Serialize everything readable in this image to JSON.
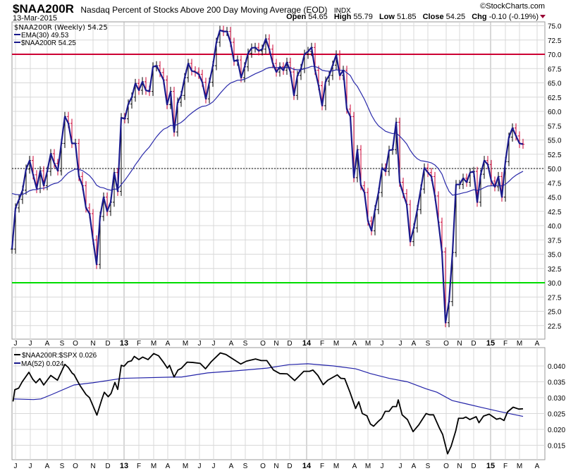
{
  "header": {
    "symbol": "$NAA200R",
    "description": "Nasdaq Percent of Stocks Above 200 Day Moving Average (EOD)",
    "exchange": "INDX",
    "date": "13-Mar-2015",
    "copyright": "©StockCharts.com",
    "quote": {
      "open_label": "Open",
      "open": "54.65",
      "high_label": "High",
      "high": "55.79",
      "low_label": "Low",
      "low": "51.85",
      "close_label": "Close",
      "close": "54.25",
      "chg_label": "Chg",
      "chg": "-0.10 (-0.19%)"
    }
  },
  "colors": {
    "price_line": "#1a1a8c",
    "ema": "#2a2aaa",
    "down_bar": "#cc0033",
    "up_bar": "#000000",
    "overbought": "#cc0033",
    "oversold": "#00dd00",
    "ratio": "#000000",
    "ratio_ma": "#2323a8",
    "grid": "#d8d8d8"
  },
  "chart_data": [
    {
      "type": "line",
      "title": "$NAA200R (Weekly) 54.25",
      "legend": [
        "$NAA200R (Weekly) 54.25",
        "EMA(30) 49.53",
        "$NAA200R 54.25"
      ],
      "legend_placement": "top-left",
      "x_unit": "weeks since first bar (first bar ≈ early Jun 2012, last bar 13-Mar-2015)",
      "ylim": [
        21,
        76.5
      ],
      "yticks": [
        "75.0",
        "72.5",
        "70.0",
        "67.5",
        "65.0",
        "62.5",
        "60.0",
        "57.5",
        "55.0",
        "52.5",
        "50.0",
        "47.5",
        "45.0",
        "42.5",
        "40.0",
        "37.5",
        "35.0",
        "32.5",
        "30.0",
        "27.5",
        "25.0",
        "22.5"
      ],
      "ytick_values": [
        75,
        72.5,
        70,
        67.5,
        65,
        62.5,
        60,
        57.5,
        55,
        52.5,
        50,
        47.5,
        45,
        42.5,
        40,
        37.5,
        35,
        32.5,
        30,
        27.5,
        25,
        22.5
      ],
      "hlines": {
        "overbought": 70,
        "midline": 50,
        "oversold": 30
      },
      "ema_period": 30,
      "ema_last": 49.53,
      "close": [
        35.9,
        43.1,
        44.6,
        46.2,
        49.9,
        51.4,
        48.9,
        46.5,
        49.6,
        47.0,
        49.5,
        52.6,
        50.9,
        49.6,
        54.4,
        59.1,
        57.9,
        54.4,
        54.4,
        48.6,
        47.0,
        43.1,
        42.1,
        37.5,
        33.2,
        41.6,
        45.0,
        42.5,
        44.1,
        49.3,
        46.0,
        58.9,
        58.7,
        61.3,
        62.5,
        64.9,
        63.7,
        65.2,
        63.7,
        63.5,
        67.8,
        68.0,
        66.8,
        65.5,
        61.2,
        63.5,
        56.4,
        61.6,
        62.8,
        65.9,
        68.4,
        67.1,
        66.9,
        66.5,
        65.1,
        62.2,
        65.1,
        68.0,
        72.1,
        74.2,
        74.0,
        74.0,
        72.1,
        68.8,
        69.0,
        65.9,
        67.8,
        70.2,
        71.1,
        71.2,
        70.6,
        70.9,
        72.7,
        70.9,
        68.4,
        66.9,
        67.8,
        67.2,
        68.6,
        66.9,
        62.8,
        66.3,
        67.5,
        70.0,
        70.5,
        71.2,
        67.2,
        64.5,
        61.0,
        65.3,
        66.3,
        68.1,
        69.9,
        66.3,
        67.2,
        60.4,
        59.1,
        48.4,
        53.3,
        47.0,
        45.8,
        40.8,
        39.1,
        42.8,
        45.8,
        50.1,
        49.5,
        53.2,
        53.3,
        58.1,
        47.6,
        45.6,
        43.7,
        37.2,
        39.6,
        42.8,
        46.4,
        50.1,
        49.3,
        48.6,
        45.2,
        40.6,
        35.4,
        23.0,
        26.7,
        35.3,
        47.2,
        47.2,
        48.3,
        47.6,
        49.3,
        49.5,
        44.1,
        49.0,
        51.4,
        50.7,
        47.8,
        46.8,
        48.6,
        45.0,
        51.2,
        55.5,
        57.1,
        55.7,
        54.4,
        54.25
      ]
    },
    {
      "type": "line",
      "legend": [
        "$NAA200R:$SPX 0.026",
        "MA(52) 0.024"
      ],
      "legend_placement": "top-left",
      "ylim": [
        0.0102,
        0.0458
      ],
      "yticks": [
        "0.040",
        "0.035",
        "0.030",
        "0.025",
        "0.020",
        "0.015"
      ],
      "ytick_values": [
        0.04,
        0.035,
        0.03,
        0.025,
        0.02,
        0.015
      ],
      "ratio": [
        [
          0.3,
          0.0288
        ],
        [
          0.8,
          0.0325
        ],
        [
          1.9,
          0.033
        ],
        [
          2.9,
          0.035
        ],
        [
          4.8,
          0.038
        ],
        [
          5.9,
          0.0358
        ],
        [
          6.8,
          0.0347
        ],
        [
          7.9,
          0.036
        ],
        [
          9.0,
          0.034
        ],
        [
          11.0,
          0.037
        ],
        [
          12.9,
          0.0355
        ],
        [
          15.0,
          0.0405
        ],
        [
          16.0,
          0.0395
        ],
        [
          17.1,
          0.0377
        ],
        [
          17.6,
          0.0373
        ],
        [
          19.2,
          0.034
        ],
        [
          21.0,
          0.031
        ],
        [
          22.0,
          0.03
        ],
        [
          24.1,
          0.0245
        ],
        [
          25.5,
          0.0295
        ],
        [
          26.2,
          0.0317
        ],
        [
          27.3,
          0.0303
        ],
        [
          28.1,
          0.0313
        ],
        [
          29.2,
          0.0348
        ],
        [
          30.0,
          0.0326
        ],
        [
          31.0,
          0.0402
        ],
        [
          31.8,
          0.0399
        ],
        [
          32.9,
          0.0413
        ],
        [
          33.9,
          0.0416
        ],
        [
          34.7,
          0.043
        ],
        [
          36.0,
          0.042
        ],
        [
          37.1,
          0.0428
        ],
        [
          38.6,
          0.042
        ],
        [
          40.2,
          0.0439
        ],
        [
          41.6,
          0.0432
        ],
        [
          42.9,
          0.0413
        ],
        [
          44.1,
          0.0393
        ],
        [
          44.7,
          0.0402
        ],
        [
          46.0,
          0.0365
        ],
        [
          47.1,
          0.0387
        ],
        [
          48.1,
          0.0393
        ],
        [
          49.7,
          0.0412
        ],
        [
          51.3,
          0.0411
        ],
        [
          53.4,
          0.0408
        ],
        [
          54.9,
          0.0391
        ],
        [
          56.5,
          0.0413
        ],
        [
          59.1,
          0.0441
        ],
        [
          60.7,
          0.0436
        ],
        [
          62.8,
          0.0421
        ],
        [
          64.9,
          0.0406
        ],
        [
          66.5,
          0.0415
        ],
        [
          69.1,
          0.0422
        ],
        [
          70.7,
          0.0417
        ],
        [
          72.3,
          0.0417
        ],
        [
          74.2,
          0.0387
        ],
        [
          76.0,
          0.0376
        ],
        [
          78.1,
          0.0375
        ],
        [
          80.2,
          0.0354
        ],
        [
          81.2,
          0.0365
        ],
        [
          82.8,
          0.0383
        ],
        [
          84.4,
          0.0383
        ],
        [
          85.4,
          0.0387
        ],
        [
          86.8,
          0.037
        ],
        [
          88.3,
          0.0341
        ],
        [
          89.6,
          0.0355
        ],
        [
          92.3,
          0.0372
        ],
        [
          93.3,
          0.0361
        ],
        [
          94.4,
          0.036
        ],
        [
          95.9,
          0.0317
        ],
        [
          97.5,
          0.0266
        ],
        [
          98.4,
          0.0287
        ],
        [
          99.4,
          0.025
        ],
        [
          100.7,
          0.0243
        ],
        [
          101.7,
          0.0217
        ],
        [
          102.6,
          0.021
        ],
        [
          103.8,
          0.0224
        ],
        [
          104.9,
          0.0235
        ],
        [
          105.9,
          0.0257
        ],
        [
          107.0,
          0.0257
        ],
        [
          108.0,
          0.0272
        ],
        [
          109.1,
          0.0272
        ],
        [
          109.6,
          0.0293
        ],
        [
          110.7,
          0.0246
        ],
        [
          112.2,
          0.0231
        ],
        [
          113.8,
          0.0193
        ],
        [
          115.4,
          0.0214
        ],
        [
          117.5,
          0.025
        ],
        [
          118.5,
          0.0246
        ],
        [
          119.6,
          0.0246
        ],
        [
          121.2,
          0.0206
        ],
        [
          122.2,
          0.0184
        ],
        [
          123.6,
          0.0123
        ],
        [
          124.6,
          0.0147
        ],
        [
          125.9,
          0.0195
        ],
        [
          126.7,
          0.0235
        ],
        [
          128.0,
          0.0235
        ],
        [
          128.8,
          0.0239
        ],
        [
          129.9,
          0.0231
        ],
        [
          131.7,
          0.024
        ],
        [
          132.5,
          0.0221
        ],
        [
          133.8,
          0.0242
        ],
        [
          135.4,
          0.0248
        ],
        [
          137.5,
          0.0232
        ],
        [
          138.5,
          0.0235
        ],
        [
          139.6,
          0.0228
        ],
        [
          140.6,
          0.0255
        ],
        [
          142.2,
          0.027
        ],
        [
          143.8,
          0.0264
        ],
        [
          145.0,
          0.0265
        ]
      ],
      "ma52": [
        [
          0.3,
          0.0296
        ],
        [
          6.1,
          0.0294
        ],
        [
          8.2,
          0.0296
        ],
        [
          11.3,
          0.031
        ],
        [
          17.6,
          0.034
        ],
        [
          22.9,
          0.0347
        ],
        [
          31.3,
          0.0361
        ],
        [
          46.0,
          0.0365
        ],
        [
          48.1,
          0.0365
        ],
        [
          55.5,
          0.0378
        ],
        [
          63.9,
          0.0385
        ],
        [
          72.3,
          0.0393
        ],
        [
          78.6,
          0.0404
        ],
        [
          83.9,
          0.0407
        ],
        [
          91.2,
          0.04
        ],
        [
          97.5,
          0.0391
        ],
        [
          101.7,
          0.0376
        ],
        [
          107.0,
          0.0361
        ],
        [
          112.2,
          0.035
        ],
        [
          117.5,
          0.0328
        ],
        [
          120.6,
          0.0317
        ],
        [
          124.9,
          0.0291
        ],
        [
          129.1,
          0.028
        ],
        [
          133.3,
          0.0269
        ],
        [
          138.5,
          0.0256
        ],
        [
          145.0,
          0.0241
        ]
      ]
    }
  ],
  "x_axis": {
    "labels": [
      "J",
      "J",
      "A",
      "S",
      "O",
      "N",
      "D",
      "13",
      "F",
      "M",
      "A",
      "M",
      "J",
      "J",
      "A",
      "S",
      "O",
      "N",
      "D",
      "14",
      "F",
      "M",
      "A",
      "M",
      "J",
      "J",
      "A",
      "S",
      "O",
      "N",
      "D",
      "15",
      "F",
      "M",
      "A"
    ],
    "year_labels": [
      "13",
      "14",
      "15"
    ]
  }
}
